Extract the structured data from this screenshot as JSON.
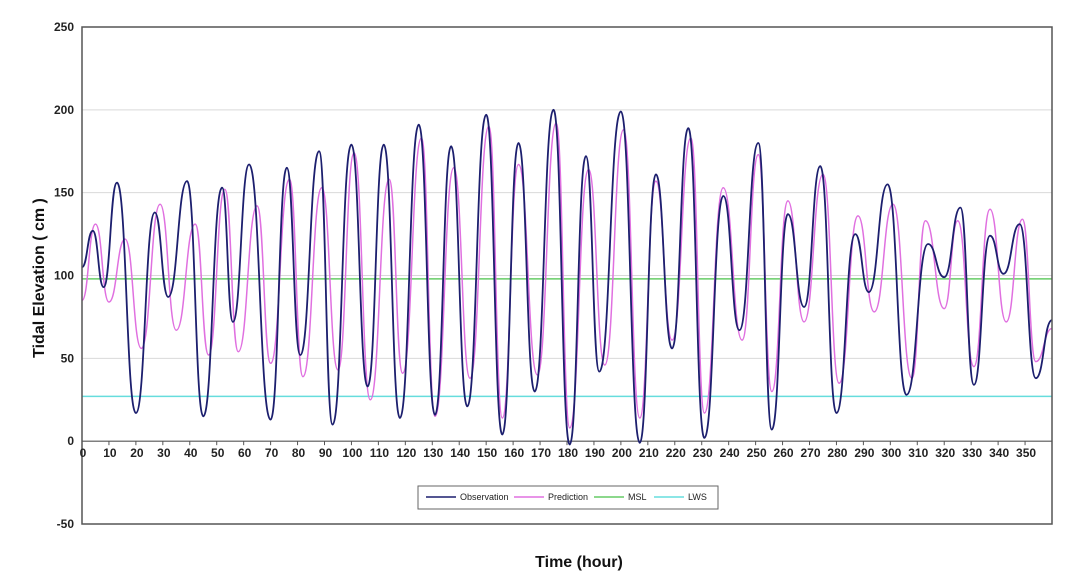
{
  "chart_data": {
    "type": "line",
    "title": "",
    "xlabel": "Time (hour)",
    "ylabel": "Tidal  Elevation ( cm )",
    "xlim": [
      0,
      360
    ],
    "ylim": [
      -50,
      250
    ],
    "x_ticks": [
      0,
      10,
      20,
      30,
      40,
      50,
      60,
      70,
      80,
      90,
      100,
      110,
      120,
      130,
      140,
      150,
      160,
      170,
      180,
      190,
      200,
      210,
      220,
      230,
      240,
      250,
      260,
      270,
      280,
      290,
      300,
      310,
      320,
      330,
      340,
      350
    ],
    "y_ticks": [
      -50,
      0,
      50,
      100,
      150,
      200,
      250
    ],
    "grid": "horizontal",
    "legend_position": "bottom-center",
    "colors": {
      "observation": "#1c1f6e",
      "prediction": "#e070e0",
      "msl": "#66cc66",
      "lws": "#66dddd",
      "frame": "#555555",
      "grid": "#d9d9d9"
    },
    "series": [
      {
        "name": "Observation",
        "x": [
          0,
          4,
          8,
          13,
          20,
          27,
          32,
          39,
          45,
          52,
          56,
          62,
          70,
          76,
          81,
          88,
          93,
          100,
          106,
          112,
          118,
          125,
          131,
          137,
          143,
          150,
          156,
          162,
          168,
          175,
          181,
          187,
          192,
          200,
          207,
          213,
          219,
          225,
          231,
          238,
          244,
          251,
          256,
          262,
          268,
          274,
          280,
          287,
          292,
          299,
          306,
          314,
          320,
          326,
          331,
          337,
          342,
          348,
          354,
          360
        ],
        "y": [
          105,
          127,
          93,
          156,
          17,
          138,
          87,
          157,
          15,
          153,
          72,
          167,
          13,
          165,
          52,
          175,
          10,
          179,
          33,
          179,
          14,
          191,
          16,
          178,
          21,
          197,
          4,
          180,
          30,
          200,
          -2,
          172,
          42,
          199,
          -1,
          161,
          56,
          189,
          2,
          148,
          67,
          180,
          7,
          137,
          81,
          166,
          17,
          125,
          90,
          155,
          28,
          119,
          99,
          141,
          34,
          124,
          101,
          131,
          38,
          73
        ]
      },
      {
        "name": "Prediction",
        "x": [
          0,
          5,
          10,
          16,
          22,
          29,
          35,
          42,
          47,
          53,
          58,
          65,
          70,
          77,
          82,
          89,
          95,
          101,
          107,
          114,
          119,
          126,
          131,
          138,
          144,
          151,
          156,
          162,
          169,
          176,
          181,
          188,
          194,
          201,
          207,
          213,
          219,
          226,
          231,
          238,
          245,
          251,
          256,
          262,
          268,
          275,
          281,
          288,
          294,
          301,
          308,
          313,
          320,
          325,
          331,
          337,
          343,
          349,
          354,
          360
        ],
        "y": [
          85,
          131,
          84,
          122,
          56,
          143,
          67,
          131,
          52,
          152,
          54,
          142,
          47,
          158,
          39,
          153,
          43,
          174,
          25,
          158,
          41,
          183,
          15,
          165,
          38,
          190,
          14,
          167,
          40,
          192,
          8,
          164,
          46,
          188,
          14,
          157,
          61,
          183,
          17,
          153,
          61,
          173,
          30,
          145,
          72,
          161,
          35,
          136,
          78,
          143,
          38,
          133,
          80,
          133,
          45,
          140,
          72,
          134,
          48,
          68
        ]
      }
    ],
    "reference_lines": [
      {
        "name": "MSL",
        "y": 98
      },
      {
        "name": "LWS",
        "y": 27
      }
    ]
  }
}
